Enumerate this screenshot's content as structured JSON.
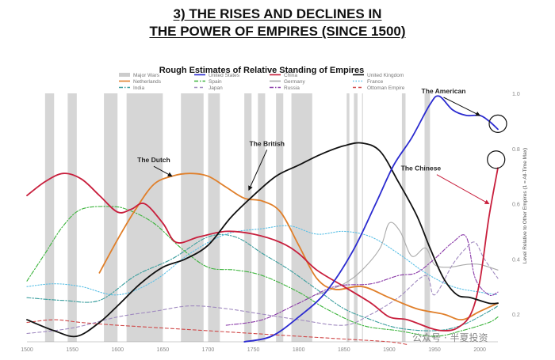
{
  "heading": {
    "line1": "3) THE RISES AND DECLINES IN",
    "line2": "THE POWER OF EMPIRES (SINCE 1500)"
  },
  "watermark": "公众号 · 半夏投资",
  "chart_data": {
    "type": "line",
    "title": "Rough Estimates of Relative Standing of Empires",
    "ylabel": "Level Relative to Other Empires (1 = All-Time Max)",
    "xlim": [
      1500,
      2020
    ],
    "ylim": [
      0.1,
      1.0
    ],
    "x_ticks": [
      "1500",
      "1550",
      "1600",
      "1650",
      "1700",
      "1750",
      "1800",
      "1850",
      "1900",
      "1950",
      "2000"
    ],
    "y_ticks": [
      "0.2",
      "0.4",
      "0.6",
      "0.8",
      "1.0"
    ],
    "wars": [
      [
        1520,
        1530
      ],
      [
        1545,
        1555
      ],
      [
        1585,
        1600
      ],
      [
        1610,
        1650
      ],
      [
        1670,
        1695
      ],
      [
        1700,
        1713
      ],
      [
        1740,
        1748
      ],
      [
        1755,
        1763
      ],
      [
        1775,
        1783
      ],
      [
        1792,
        1815
      ],
      [
        1853,
        1856
      ],
      [
        1861,
        1865
      ],
      [
        1870,
        1871
      ],
      [
        1914,
        1918
      ],
      [
        1939,
        1945
      ]
    ],
    "legend": [
      {
        "name": "Major Wars",
        "key": "wars",
        "color": "#cccccc",
        "style": "box"
      },
      {
        "name": "United States",
        "key": "us",
        "color": "#2b2bd0",
        "style": "solid"
      },
      {
        "name": "China",
        "key": "china",
        "color": "#c81e3c",
        "style": "solid"
      },
      {
        "name": "United Kingdom",
        "key": "uk",
        "color": "#111111",
        "style": "solid"
      },
      {
        "name": "Netherlands",
        "key": "netherlands",
        "color": "#e07f2a",
        "style": "solid"
      },
      {
        "name": "Spain",
        "key": "spain",
        "color": "#3cb43c",
        "style": "dashdot"
      },
      {
        "name": "Germany",
        "key": "germany",
        "color": "#aaaaaa",
        "style": "solid"
      },
      {
        "name": "France",
        "key": "france",
        "color": "#5bc0e6",
        "style": "dot"
      },
      {
        "name": "India",
        "key": "india",
        "color": "#3a9e9e",
        "style": "dashdot"
      },
      {
        "name": "Japan",
        "key": "japan",
        "color": "#a08ac0",
        "style": "dash"
      },
      {
        "name": "Russia",
        "key": "russia",
        "color": "#8a3aa8",
        "style": "dashdot"
      },
      {
        "name": "Ottoman Empire",
        "key": "ottoman",
        "color": "#d04848",
        "style": "dash"
      }
    ],
    "series": {
      "uk": [
        [
          1500,
          0.18
        ],
        [
          1530,
          0.14
        ],
        [
          1555,
          0.12
        ],
        [
          1580,
          0.17
        ],
        [
          1600,
          0.23
        ],
        [
          1625,
          0.31
        ],
        [
          1650,
          0.37
        ],
        [
          1675,
          0.4
        ],
        [
          1700,
          0.45
        ],
        [
          1725,
          0.55
        ],
        [
          1750,
          0.63
        ],
        [
          1775,
          0.7
        ],
        [
          1800,
          0.74
        ],
        [
          1825,
          0.78
        ],
        [
          1850,
          0.81
        ],
        [
          1870,
          0.82
        ],
        [
          1890,
          0.79
        ],
        [
          1910,
          0.68
        ],
        [
          1930,
          0.56
        ],
        [
          1945,
          0.44
        ],
        [
          1960,
          0.33
        ],
        [
          1975,
          0.27
        ],
        [
          1990,
          0.26
        ],
        [
          2010,
          0.24
        ],
        [
          2020,
          0.24
        ]
      ],
      "us": [
        [
          1740,
          0.1
        ],
        [
          1770,
          0.12
        ],
        [
          1800,
          0.19
        ],
        [
          1830,
          0.28
        ],
        [
          1860,
          0.43
        ],
        [
          1885,
          0.6
        ],
        [
          1905,
          0.74
        ],
        [
          1925,
          0.84
        ],
        [
          1945,
          0.96
        ],
        [
          1955,
          0.99
        ],
        [
          1970,
          0.94
        ],
        [
          1985,
          0.92
        ],
        [
          2000,
          0.92
        ],
        [
          2010,
          0.9
        ],
        [
          2020,
          0.87
        ]
      ],
      "china": [
        [
          1500,
          0.63
        ],
        [
          1520,
          0.68
        ],
        [
          1540,
          0.71
        ],
        [
          1560,
          0.69
        ],
        [
          1580,
          0.63
        ],
        [
          1600,
          0.57
        ],
        [
          1615,
          0.58
        ],
        [
          1630,
          0.6
        ],
        [
          1650,
          0.53
        ],
        [
          1665,
          0.46
        ],
        [
          1690,
          0.48
        ],
        [
          1720,
          0.5
        ],
        [
          1750,
          0.49
        ],
        [
          1780,
          0.46
        ],
        [
          1800,
          0.42
        ],
        [
          1820,
          0.36
        ],
        [
          1850,
          0.3
        ],
        [
          1880,
          0.24
        ],
        [
          1900,
          0.19
        ],
        [
          1920,
          0.18
        ],
        [
          1945,
          0.15
        ],
        [
          1960,
          0.14
        ],
        [
          1975,
          0.15
        ],
        [
          1990,
          0.2
        ],
        [
          2000,
          0.32
        ],
        [
          2010,
          0.55
        ],
        [
          2020,
          0.73
        ]
      ],
      "netherlands": [
        [
          1580,
          0.35
        ],
        [
          1600,
          0.47
        ],
        [
          1620,
          0.58
        ],
        [
          1640,
          0.67
        ],
        [
          1660,
          0.7
        ],
        [
          1680,
          0.71
        ],
        [
          1700,
          0.7
        ],
        [
          1720,
          0.66
        ],
        [
          1740,
          0.62
        ],
        [
          1760,
          0.61
        ],
        [
          1780,
          0.57
        ],
        [
          1800,
          0.45
        ],
        [
          1820,
          0.33
        ],
        [
          1840,
          0.29
        ],
        [
          1870,
          0.3
        ],
        [
          1900,
          0.26
        ],
        [
          1930,
          0.22
        ],
        [
          1960,
          0.2
        ],
        [
          1980,
          0.18
        ],
        [
          2000,
          0.21
        ],
        [
          2020,
          0.24
        ]
      ],
      "spain": [
        [
          1500,
          0.32
        ],
        [
          1520,
          0.42
        ],
        [
          1540,
          0.52
        ],
        [
          1560,
          0.58
        ],
        [
          1590,
          0.59
        ],
        [
          1610,
          0.58
        ],
        [
          1640,
          0.53
        ],
        [
          1670,
          0.44
        ],
        [
          1700,
          0.37
        ],
        [
          1730,
          0.36
        ],
        [
          1760,
          0.34
        ],
        [
          1800,
          0.28
        ],
        [
          1830,
          0.22
        ],
        [
          1870,
          0.16
        ],
        [
          1910,
          0.14
        ],
        [
          1950,
          0.12
        ],
        [
          1980,
          0.14
        ],
        [
          2010,
          0.17
        ],
        [
          2020,
          0.19
        ]
      ],
      "france": [
        [
          1500,
          0.3
        ],
        [
          1530,
          0.31
        ],
        [
          1560,
          0.3
        ],
        [
          1600,
          0.27
        ],
        [
          1640,
          0.32
        ],
        [
          1680,
          0.42
        ],
        [
          1720,
          0.49
        ],
        [
          1760,
          0.51
        ],
        [
          1790,
          0.52
        ],
        [
          1820,
          0.49
        ],
        [
          1850,
          0.5
        ],
        [
          1880,
          0.48
        ],
        [
          1910,
          0.42
        ],
        [
          1940,
          0.35
        ],
        [
          1970,
          0.3
        ],
        [
          2000,
          0.28
        ],
        [
          2020,
          0.27
        ]
      ],
      "india": [
        [
          1500,
          0.26
        ],
        [
          1540,
          0.25
        ],
        [
          1580,
          0.25
        ],
        [
          1620,
          0.34
        ],
        [
          1660,
          0.4
        ],
        [
          1700,
          0.48
        ],
        [
          1730,
          0.48
        ],
        [
          1760,
          0.42
        ],
        [
          1790,
          0.36
        ],
        [
          1820,
          0.29
        ],
        [
          1850,
          0.22
        ],
        [
          1880,
          0.18
        ],
        [
          1910,
          0.15
        ],
        [
          1950,
          0.14
        ],
        [
          1980,
          0.16
        ],
        [
          2010,
          0.21
        ],
        [
          2020,
          0.23
        ]
      ],
      "germany": [
        [
          1820,
          0.27
        ],
        [
          1850,
          0.31
        ],
        [
          1870,
          0.36
        ],
        [
          1890,
          0.44
        ],
        [
          1900,
          0.53
        ],
        [
          1912,
          0.5
        ],
        [
          1925,
          0.41
        ],
        [
          1940,
          0.44
        ],
        [
          1950,
          0.38
        ],
        [
          1965,
          0.37
        ],
        [
          1985,
          0.38
        ],
        [
          2000,
          0.38
        ],
        [
          2020,
          0.36
        ]
      ],
      "japan": [
        [
          1500,
          0.13
        ],
        [
          1550,
          0.15
        ],
        [
          1600,
          0.19
        ],
        [
          1640,
          0.21
        ],
        [
          1680,
          0.23
        ],
        [
          1720,
          0.22
        ],
        [
          1760,
          0.2
        ],
        [
          1800,
          0.18
        ],
        [
          1850,
          0.16
        ],
        [
          1880,
          0.2
        ],
        [
          1910,
          0.26
        ],
        [
          1940,
          0.34
        ],
        [
          1950,
          0.27
        ],
        [
          1970,
          0.38
        ],
        [
          1985,
          0.44
        ],
        [
          1995,
          0.46
        ],
        [
          2005,
          0.4
        ],
        [
          2020,
          0.33
        ]
      ],
      "russia": [
        [
          1720,
          0.16
        ],
        [
          1760,
          0.18
        ],
        [
          1800,
          0.24
        ],
        [
          1840,
          0.3
        ],
        [
          1880,
          0.31
        ],
        [
          1910,
          0.34
        ],
        [
          1930,
          0.35
        ],
        [
          1950,
          0.4
        ],
        [
          1970,
          0.46
        ],
        [
          1985,
          0.48
        ],
        [
          1995,
          0.33
        ],
        [
          2010,
          0.27
        ],
        [
          2020,
          0.28
        ]
      ],
      "ottoman": [
        [
          1500,
          0.17
        ],
        [
          1530,
          0.18
        ],
        [
          1560,
          0.17
        ],
        [
          1600,
          0.16
        ],
        [
          1650,
          0.15
        ],
        [
          1700,
          0.14
        ],
        [
          1750,
          0.13
        ],
        [
          1800,
          0.12
        ],
        [
          1850,
          0.11
        ],
        [
          1900,
          0.1
        ],
        [
          1920,
          0.09
        ]
      ]
    },
    "annotations": [
      {
        "text": "The Dutch",
        "x": 1640,
        "y": 0.75,
        "ax": 1660,
        "ay": 0.7
      },
      {
        "text": "The British",
        "x": 1765,
        "y": 0.81,
        "ax": 1745,
        "ay": 0.65
      },
      {
        "text": "The American",
        "x": 1960,
        "y": 1.0,
        "ax": 2000,
        "ay": 0.92
      },
      {
        "text": "The Chinese",
        "x": 1935,
        "y": 0.72,
        "ax": 2010,
        "ay": 0.6
      }
    ],
    "circles": [
      {
        "x": 2020,
        "y": 0.89
      },
      {
        "x": 2018,
        "y": 0.76
      }
    ]
  }
}
